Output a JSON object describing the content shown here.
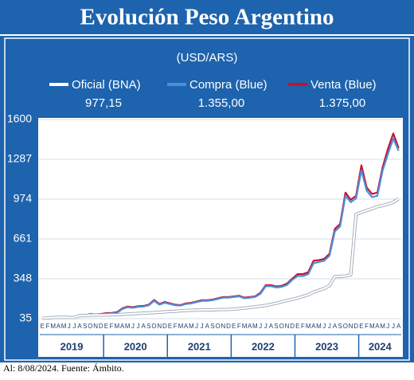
{
  "chart_data": {
    "type": "line",
    "title": "Evolución Peso Argentino",
    "subtitle": "(USD/ARS)",
    "footer": "Al: 8/08/2024. Fuente: Ámbito.",
    "categories": [
      "E",
      "F",
      "M",
      "A",
      "M",
      "J",
      "J",
      "A",
      "S",
      "O",
      "N",
      "D",
      "E",
      "F",
      "M",
      "A",
      "M",
      "J",
      "J",
      "A",
      "S",
      "O",
      "N",
      "D",
      "E",
      "F",
      "M",
      "A",
      "M",
      "J",
      "J",
      "A",
      "S",
      "O",
      "N",
      "D",
      "E",
      "F",
      "M",
      "A",
      "M",
      "J",
      "J",
      "A",
      "S",
      "O",
      "N",
      "D",
      "E",
      "F",
      "M",
      "A",
      "M",
      "J",
      "J",
      "A",
      "S",
      "O",
      "N",
      "D",
      "E",
      "F",
      "M",
      "A",
      "M",
      "J",
      "J",
      "A"
    ],
    "years": [
      "2019",
      "2020",
      "2021",
      "2022",
      "2023",
      "2024"
    ],
    "ylim": [
      35,
      1600
    ],
    "yticks": [
      35,
      348,
      661,
      974,
      1287,
      1600
    ],
    "series": [
      {
        "name": "Oficial (BNA)",
        "color": "#ffffff",
        "values": [
          39,
          40,
          44,
          45,
          46,
          44,
          44,
          60,
          59,
          63,
          63,
          63,
          64,
          65,
          66,
          69,
          71,
          74,
          76,
          78,
          80,
          83,
          85,
          88,
          91,
          93,
          97,
          99,
          101,
          102,
          103,
          104,
          105,
          106,
          107,
          108,
          110,
          114,
          118,
          123,
          128,
          133,
          139,
          147,
          157,
          167,
          178,
          186,
          197,
          210,
          223,
          244,
          258,
          272,
          295,
          365,
          367,
          370,
          380,
          855,
          870,
          885,
          900,
          915,
          925,
          935,
          950,
          977.15
        ],
        "value_labels": [
          null,
          null,
          null,
          null,
          null,
          null,
          null,
          null,
          null,
          null,
          null,
          null,
          null,
          null,
          null,
          null,
          null,
          null,
          null,
          null,
          null,
          null,
          null,
          null,
          null,
          null,
          null,
          null,
          null,
          null,
          null,
          null,
          null,
          null,
          null,
          null,
          null,
          null,
          null,
          null,
          null,
          null,
          null,
          null,
          null,
          null,
          null,
          null,
          null,
          null,
          null,
          null,
          null,
          null,
          null,
          null,
          null,
          null,
          null,
          null,
          null,
          null,
          null,
          null,
          null,
          null,
          null,
          "977,15"
        ]
      },
      {
        "name": "Compra (Blue)",
        "color": "#4a90d9",
        "values": [
          37,
          38,
          42,
          44,
          44,
          42,
          42,
          57,
          58,
          68,
          65,
          68,
          72,
          76,
          80,
          110,
          125,
          120,
          128,
          130,
          140,
          175,
          145,
          160,
          150,
          140,
          138,
          150,
          155,
          165,
          175,
          175,
          180,
          190,
          200,
          200,
          205,
          210,
          195,
          200,
          205,
          230,
          290,
          290,
          280,
          285,
          300,
          340,
          370,
          370,
          385,
          470,
          480,
          490,
          530,
          720,
          760,
          1000,
          950,
          980,
          1200,
          1040,
          990,
          1000,
          1200,
          1330,
          1450,
          1355
        ],
        "value_labels": [
          null,
          null,
          null,
          null,
          null,
          null,
          null,
          null,
          null,
          null,
          null,
          null,
          null,
          null,
          null,
          null,
          null,
          null,
          null,
          null,
          null,
          null,
          null,
          null,
          null,
          null,
          null,
          null,
          null,
          null,
          null,
          null,
          null,
          null,
          null,
          null,
          null,
          null,
          null,
          null,
          null,
          null,
          null,
          null,
          null,
          null,
          null,
          null,
          null,
          null,
          null,
          null,
          null,
          null,
          null,
          null,
          null,
          null,
          null,
          null,
          null,
          null,
          null,
          null,
          null,
          null,
          null,
          "1.355,00"
        ]
      },
      {
        "name": "Venta (Blue)",
        "color": "#c8102e",
        "values": [
          39,
          40,
          44,
          46,
          46,
          44,
          44,
          60,
          60,
          72,
          69,
          72,
          78,
          80,
          86,
          115,
          130,
          125,
          133,
          135,
          145,
          182,
          150,
          166,
          155,
          145,
          142,
          155,
          160,
          170,
          180,
          180,
          185,
          195,
          205,
          205,
          210,
          215,
          200,
          205,
          210,
          238,
          298,
          298,
          288,
          293,
          310,
          350,
          385,
          385,
          400,
          490,
          495,
          505,
          545,
          740,
          780,
          1025,
          970,
          1000,
          1240,
          1065,
          1015,
          1025,
          1225,
          1370,
          1490,
          1375
        ],
        "value_labels": [
          null,
          null,
          null,
          null,
          null,
          null,
          null,
          null,
          null,
          null,
          null,
          null,
          null,
          null,
          null,
          null,
          null,
          null,
          null,
          null,
          null,
          null,
          null,
          null,
          null,
          null,
          null,
          null,
          null,
          null,
          null,
          null,
          null,
          null,
          null,
          null,
          null,
          null,
          null,
          null,
          null,
          null,
          null,
          null,
          null,
          null,
          null,
          null,
          null,
          null,
          null,
          null,
          null,
          null,
          null,
          null,
          null,
          null,
          null,
          null,
          null,
          null,
          null,
          null,
          null,
          null,
          null,
          "1.375,00"
        ]
      }
    ]
  }
}
